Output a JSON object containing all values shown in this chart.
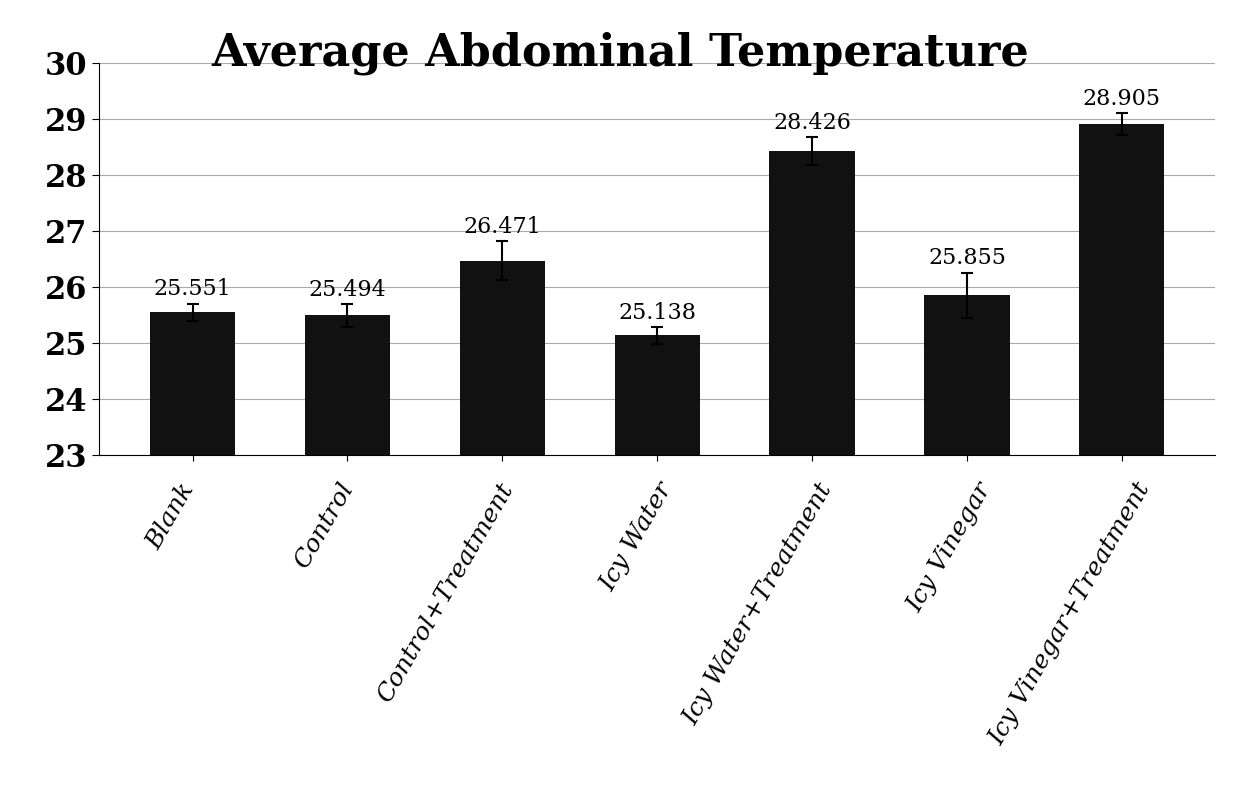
{
  "title": "Average Abdominal Temperature",
  "categories": [
    "Blank",
    "Control",
    "Control+Treatment",
    "Icy Water",
    "Icy Water+Treatment",
    "Icy Vinegar",
    "Icy Vinegar+Treatment"
  ],
  "values": [
    25.551,
    25.494,
    26.471,
    25.138,
    28.426,
    25.855,
    28.905
  ],
  "errors": [
    0.15,
    0.2,
    0.35,
    0.15,
    0.25,
    0.4,
    0.2
  ],
  "bar_color": "#111111",
  "ylim": [
    23,
    30
  ],
  "yticks": [
    23,
    24,
    25,
    26,
    27,
    28,
    29,
    30
  ],
  "title_fontsize": 32,
  "label_fontsize": 18,
  "value_fontsize": 16,
  "ytick_fontsize": 22,
  "background_color": "#ffffff",
  "grid_color": "#aaaaaa"
}
